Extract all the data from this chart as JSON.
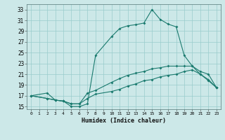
{
  "xlabel": "Humidex (Indice chaleur)",
  "bg_color": "#cce8e8",
  "grid_color": "#99cccc",
  "line_color": "#1a7a6e",
  "xlim": [
    -0.5,
    23.5
  ],
  "ylim": [
    14.5,
    34.0
  ],
  "xticks": [
    0,
    1,
    2,
    3,
    4,
    5,
    6,
    7,
    8,
    9,
    10,
    11,
    12,
    13,
    14,
    15,
    16,
    17,
    18,
    19,
    20,
    21,
    22,
    23
  ],
  "yticks": [
    15,
    17,
    19,
    21,
    23,
    25,
    27,
    29,
    31,
    33
  ],
  "line1_x": [
    0,
    2,
    3,
    4,
    5,
    6,
    7,
    8,
    10,
    11,
    12,
    13,
    14,
    15,
    16,
    17,
    18,
    19,
    20,
    21,
    22,
    23
  ],
  "line1_y": [
    17,
    17.5,
    16.2,
    16.0,
    15.0,
    15.0,
    15.5,
    24.5,
    28.0,
    29.5,
    30.0,
    30.2,
    30.5,
    33.0,
    31.2,
    30.3,
    29.8,
    24.5,
    22.5,
    21.0,
    19.8,
    18.5
  ],
  "line2_x": [
    0,
    2,
    3,
    4,
    5,
    6,
    7,
    8,
    10,
    11,
    12,
    13,
    14,
    15,
    16,
    17,
    18,
    19,
    20,
    21,
    22,
    23
  ],
  "line2_y": [
    17,
    16.5,
    16.2,
    16.0,
    15.5,
    15.5,
    17.5,
    18.0,
    19.5,
    20.2,
    20.8,
    21.2,
    21.5,
    22.0,
    22.2,
    22.5,
    22.5,
    22.5,
    22.5,
    21.5,
    21.0,
    18.5
  ],
  "line3_x": [
    0,
    2,
    3,
    4,
    5,
    6,
    7,
    8,
    10,
    11,
    12,
    13,
    14,
    15,
    16,
    17,
    18,
    19,
    20,
    21,
    22,
    23
  ],
  "line3_y": [
    17,
    16.5,
    16.2,
    16.0,
    15.5,
    15.5,
    16.5,
    17.3,
    17.8,
    18.2,
    18.8,
    19.2,
    19.8,
    20.0,
    20.5,
    20.8,
    21.0,
    21.5,
    21.8,
    21.0,
    20.0,
    18.5
  ]
}
